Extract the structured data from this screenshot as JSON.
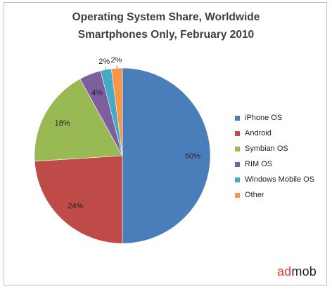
{
  "chart_data": {
    "type": "pie",
    "title": "Operating System Share, Worldwide",
    "subtitle": "Smartphones Only, February 2010",
    "categories": [
      "iPhone OS",
      "Android",
      "Symbian OS",
      "RIM OS",
      "Windows Mobile OS",
      "Other"
    ],
    "values": [
      50,
      24,
      18,
      4,
      2,
      2
    ],
    "data_labels": [
      "50%",
      "24%",
      "18%",
      "4%",
      "2%",
      "2%"
    ],
    "colors": [
      "#4a7ebb",
      "#be4b48",
      "#98b954",
      "#7d5fa0",
      "#46aac5",
      "#f79646"
    ],
    "legend_position": "right",
    "start_angle_deg": 0,
    "direction": "clockwise"
  },
  "branding": {
    "ad": "ad",
    "mob": "mob"
  }
}
